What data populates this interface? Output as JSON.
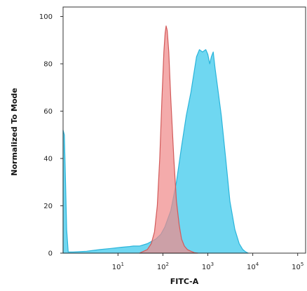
{
  "chart_data": {
    "type": "area",
    "title": "",
    "xlabel": "FITC-A",
    "ylabel": "Normalized To Mode",
    "x_scale": "log",
    "xlim": [
      0.6,
      150000
    ],
    "ylim": [
      0,
      104
    ],
    "x_ticks": [
      {
        "value": 10,
        "base": "10",
        "exp": "1"
      },
      {
        "value": 100,
        "base": "10",
        "exp": "2"
      },
      {
        "value": 1000,
        "base": "10",
        "exp": "3"
      },
      {
        "value": 10000,
        "base": "10",
        "exp": "4"
      },
      {
        "value": 100000,
        "base": "10",
        "exp": "5"
      }
    ],
    "y_ticks": [
      0,
      20,
      40,
      60,
      80,
      100
    ],
    "grid": false,
    "legend": "none",
    "series": [
      {
        "color": "#5fd3ef",
        "stroke": "#2ab4da",
        "x": [
          0.6,
          0.64,
          0.68,
          0.72,
          0.78,
          1.0,
          2.0,
          4.0,
          7.0,
          12.0,
          18.0,
          22.0,
          30.0,
          45.0,
          70.0,
          90.0,
          110.0,
          150.0,
          200.0,
          260.0,
          330.0,
          420.0,
          500.0,
          560.0,
          650.0,
          760.0,
          900.0,
          1000.0,
          1100.0,
          1200.0,
          1320.0,
          1450.0,
          1650.0,
          2000.0,
          2500.0,
          3100.0,
          4000.0,
          5000.0,
          6000.0,
          7000.0,
          8000.0
        ],
        "y": [
          52,
          50,
          30,
          10,
          0.5,
          0.5,
          0.8,
          1.5,
          2.0,
          2.5,
          2.8,
          3.0,
          3.0,
          4.0,
          6.0,
          8.0,
          11.0,
          18.0,
          30.0,
          45.0,
          58.0,
          68.0,
          77.0,
          83.0,
          86.0,
          85.0,
          86.0,
          84.0,
          80.0,
          83.0,
          85.0,
          78.0,
          70.0,
          58.0,
          40.0,
          22.0,
          10.0,
          4.0,
          1.5,
          0.5,
          0.0
        ]
      },
      {
        "color": "#f08a8a",
        "stroke": "#d25a5a",
        "x": [
          30.0,
          45.0,
          55.0,
          65.0,
          75.0,
          85.0,
          95.0,
          105.0,
          112.0,
          118.0,
          125.0,
          135.0,
          150.0,
          175.0,
          200.0,
          230.0,
          260.0,
          300.0,
          350.0,
          420.0,
          500.0,
          600.0
        ],
        "y": [
          0.0,
          1.5,
          4.0,
          9.0,
          20.0,
          40.0,
          65.0,
          85.0,
          93.0,
          96.0,
          94.0,
          85.0,
          65.0,
          40.0,
          22.0,
          12.0,
          6.0,
          3.0,
          1.5,
          0.8,
          0.2,
          0.0
        ]
      }
    ]
  }
}
